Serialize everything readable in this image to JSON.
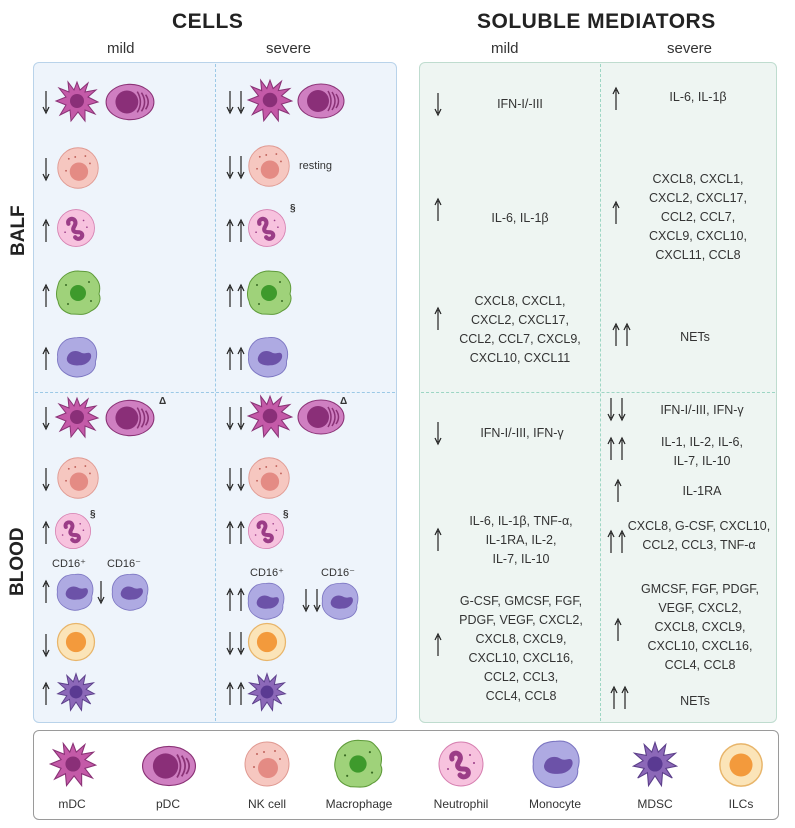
{
  "headers": {
    "cells": "CELLS",
    "soluble_mediators": "SOLUBLE MEDIATORS",
    "mild": "mild",
    "severe": "severe"
  },
  "sections": {
    "balf": "BALF",
    "blood": "BLOOD"
  },
  "cell_annotations": {
    "resting": "resting",
    "section": "§",
    "delta": "Δ",
    "cd16_pos": "CD16⁺",
    "cd16_neg": "CD16⁻"
  },
  "mediators": {
    "balf_mild": [
      {
        "arrows": "down1",
        "text": "IFN-I/-III"
      },
      {
        "arrows": "up1",
        "text": "IL-6, IL-1β"
      },
      {
        "arrows": "up1",
        "text": "CXCL8, CXCL1,\nCXCL2, CXCL17,\nCCL2, CCL7, CXCL9,\nCXCL10, CXCL11"
      }
    ],
    "balf_severe": [
      {
        "arrows": "up1",
        "text": "IL-6, IL-1β"
      },
      {
        "arrows": "up1",
        "text": "CXCL8, CXCL1,\nCXCL2, CXCL17,\nCCL2, CCL7,\nCXCL9, CXCL10,\nCXCL11, CCL8"
      },
      {
        "arrows": "up2",
        "text": "NETs"
      }
    ],
    "blood_mild": [
      {
        "arrows": "down1",
        "text": "IFN-I/-III, IFN-γ"
      },
      {
        "arrows": "up1",
        "text": "IL-6, IL-1β, TNF-α,\nIL-1RA, IL-2,\nIL-7, IL-10"
      },
      {
        "arrows": "up1",
        "text": "G-CSF, GMCSF, FGF,\nPDGF, VEGF, CXCL2,\nCXCL8, CXCL9,\nCXCL10, CXCL16,\nCCL2, CCL3,\nCCL4, CCL8"
      }
    ],
    "blood_severe": [
      {
        "arrows": "down2",
        "text": "IFN-I/-III, IFN-γ"
      },
      {
        "arrows": "up2",
        "text": "IL-1, IL-2, IL-6,\nIL-7, IL-10"
      },
      {
        "arrows": "up1",
        "text": "IL-1RA"
      },
      {
        "arrows": "up2",
        "text": "CXCL8, G-CSF, CXCL10,\nCCL2, CCL3, TNF-α"
      },
      {
        "arrows": "up1",
        "text": "GMCSF, FGF, PDGF,\nVEGF, CXCL2,\nCXCL8, CXCL9,\nCXCL10, CXCL16,\nCCL4, CCL8"
      },
      {
        "arrows": "up2",
        "text": "NETs"
      }
    ]
  },
  "legend": [
    {
      "label": "mDC",
      "icon": "mdc-icon"
    },
    {
      "label": "pDC",
      "icon": "pdc-icon"
    },
    {
      "label": "NK cell",
      "icon": "nk-cell-icon"
    },
    {
      "label": "Macrophage",
      "icon": "macrophage-icon"
    },
    {
      "label": "Neutrophil",
      "icon": "neutrophil-icon"
    },
    {
      "label": "Monocyte",
      "icon": "monocyte-icon"
    },
    {
      "label": "MDSC",
      "icon": "mdsc-icon"
    },
    {
      "label": "ILCs",
      "icon": "ilc-icon"
    }
  ],
  "colors": {
    "cells_panel": "#eef4fb",
    "mediators_panel": "#eef5f2",
    "mdc": "#c45aa8",
    "pdc": "#b058a8",
    "nk": "#f2b7b0",
    "macrophage": "#8ccb63",
    "neutrophil": "#f4b6d8",
    "monocyte": "#a9a5dd",
    "mdsc": "#8c68b8",
    "ilc": "#f6c56a"
  }
}
